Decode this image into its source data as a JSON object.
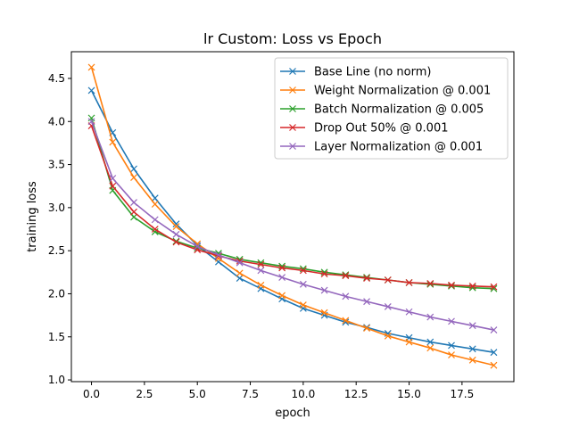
{
  "chart_data": {
    "type": "line",
    "title": "lr Custom: Loss vs Epoch",
    "xlabel": "epoch",
    "ylabel": "training loss",
    "xlim": [
      -0.95,
      19.95
    ],
    "ylim": [
      0.98,
      4.81
    ],
    "xticks": [
      0,
      2.5,
      5,
      7.5,
      10,
      12.5,
      15,
      17.5
    ],
    "xtick_labels": [
      "0.0",
      "2.5",
      "5.0",
      "7.5",
      "10.0",
      "12.5",
      "15.0",
      "17.5"
    ],
    "yticks": [
      1.0,
      1.5,
      2.0,
      2.5,
      3.0,
      3.5,
      4.0,
      4.5
    ],
    "ytick_labels": [
      "1.0",
      "1.5",
      "2.0",
      "2.5",
      "3.0",
      "3.5",
      "4.0",
      "4.5"
    ],
    "grid": false,
    "legend_position": "top-right",
    "marker": "x",
    "x": [
      0,
      1,
      2,
      3,
      4,
      5,
      6,
      7,
      8,
      9,
      10,
      11,
      12,
      13,
      14,
      15,
      16,
      17,
      18,
      19
    ],
    "series": [
      {
        "name": "Base Line (no norm)",
        "color": "#1f77b4",
        "values": [
          4.36,
          3.87,
          3.45,
          3.11,
          2.81,
          2.56,
          2.37,
          2.18,
          2.06,
          1.94,
          1.83,
          1.75,
          1.67,
          1.61,
          1.54,
          1.49,
          1.44,
          1.4,
          1.36,
          1.32
        ]
      },
      {
        "name": "Weight Normalization @ 0.001",
        "color": "#ff7f0e",
        "values": [
          4.63,
          3.76,
          3.35,
          3.04,
          2.78,
          2.58,
          2.41,
          2.24,
          2.1,
          1.98,
          1.87,
          1.78,
          1.69,
          1.6,
          1.51,
          1.44,
          1.37,
          1.29,
          1.23,
          1.17
        ]
      },
      {
        "name": "Batch Normalization @ 0.005",
        "color": "#2ca02c",
        "values": [
          4.04,
          3.2,
          2.89,
          2.72,
          2.61,
          2.53,
          2.47,
          2.4,
          2.36,
          2.32,
          2.29,
          2.25,
          2.22,
          2.19,
          2.16,
          2.13,
          2.11,
          2.09,
          2.07,
          2.06
        ]
      },
      {
        "name": "Drop Out 50% @ 0.001",
        "color": "#d62728",
        "values": [
          3.95,
          3.25,
          2.95,
          2.75,
          2.6,
          2.51,
          2.44,
          2.38,
          2.34,
          2.3,
          2.27,
          2.23,
          2.21,
          2.18,
          2.16,
          2.13,
          2.12,
          2.1,
          2.09,
          2.08
        ]
      },
      {
        "name": "Layer Normalization @ 0.001",
        "color": "#9467bd",
        "values": [
          4.0,
          3.34,
          3.06,
          2.86,
          2.69,
          2.55,
          2.45,
          2.36,
          2.27,
          2.19,
          2.11,
          2.04,
          1.97,
          1.91,
          1.85,
          1.79,
          1.73,
          1.68,
          1.63,
          1.58
        ]
      }
    ]
  }
}
